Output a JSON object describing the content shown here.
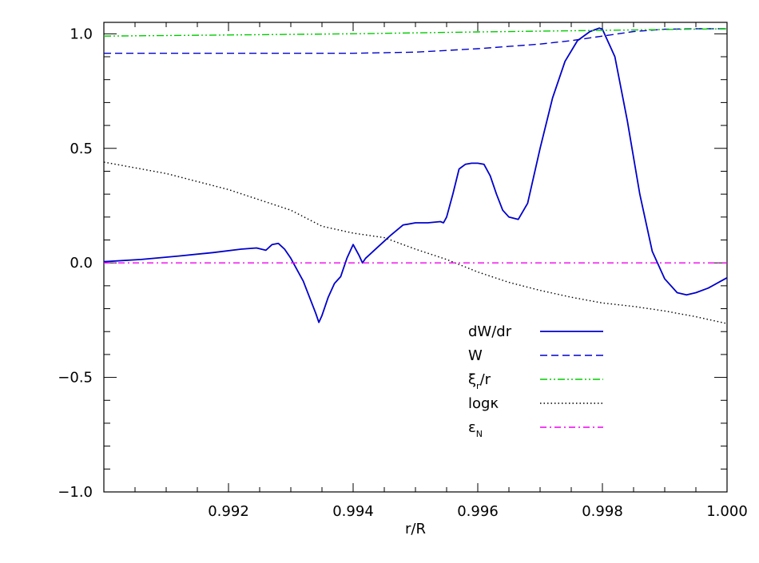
{
  "chart_data": {
    "type": "line",
    "title": "",
    "xlabel": "r/R",
    "ylabel": "",
    "xlim": [
      0.99,
      1.0
    ],
    "ylim": [
      -1.0,
      1.05
    ],
    "xticks": [
      0.992,
      0.994,
      0.996,
      0.998,
      1.0
    ],
    "xtick_labels": [
      "0.992",
      "0.994",
      "0.996",
      "0.998",
      "1.000"
    ],
    "yticks": [
      -1.0,
      -0.5,
      0.0,
      0.5,
      1.0
    ],
    "ytick_labels": [
      "−1.0",
      "−0.5",
      "0.0",
      "0.5",
      "1.0"
    ],
    "grid": false,
    "legend_position": "lower-right",
    "series": [
      {
        "name": "dW/dr",
        "color": "#0000cc",
        "style": "solid",
        "x": [
          0.99,
          0.9906,
          0.9912,
          0.99175,
          0.9922,
          0.99245,
          0.9926,
          0.9927,
          0.9928,
          0.9929,
          0.993,
          0.9931,
          0.9932,
          0.9933,
          0.9934,
          0.99345,
          0.9935,
          0.9936,
          0.9937,
          0.9938,
          0.9939,
          0.994,
          0.9941,
          0.99415,
          0.9942,
          0.9944,
          0.9946,
          0.9948,
          0.995,
          0.9952,
          0.9954,
          0.99545,
          0.9955,
          0.9956,
          0.9957,
          0.9958,
          0.9959,
          0.996,
          0.9961,
          0.9962,
          0.9963,
          0.9964,
          0.9965,
          0.99665,
          0.9968,
          0.997,
          0.9972,
          0.9974,
          0.9976,
          0.9978,
          0.99795,
          0.998,
          0.9982,
          0.9984,
          0.9986,
          0.9988,
          0.999,
          0.9992,
          0.99935,
          0.9995,
          0.9997,
          0.9999,
          1.0
        ],
        "y": [
          0.005,
          0.015,
          0.03,
          0.045,
          0.06,
          0.065,
          0.055,
          0.08,
          0.085,
          0.06,
          0.02,
          -0.03,
          -0.08,
          -0.15,
          -0.22,
          -0.26,
          -0.23,
          -0.15,
          -0.09,
          -0.06,
          0.02,
          0.08,
          0.03,
          0.0,
          0.02,
          0.07,
          0.12,
          0.165,
          0.175,
          0.175,
          0.18,
          0.175,
          0.2,
          0.3,
          0.41,
          0.43,
          0.435,
          0.435,
          0.43,
          0.38,
          0.3,
          0.23,
          0.2,
          0.19,
          0.26,
          0.5,
          0.72,
          0.88,
          0.97,
          1.01,
          1.025,
          1.02,
          0.9,
          0.62,
          0.3,
          0.05,
          -0.07,
          -0.13,
          -0.14,
          -0.13,
          -0.11,
          -0.08,
          -0.065
        ]
      },
      {
        "name": "W",
        "color": "#0000cc",
        "style": "dashed",
        "x": [
          0.99,
          0.992,
          0.994,
          0.995,
          0.996,
          0.9965,
          0.997,
          0.9975,
          0.998,
          0.9985,
          0.999,
          0.9995,
          1.0
        ],
        "y": [
          0.915,
          0.915,
          0.915,
          0.92,
          0.935,
          0.945,
          0.955,
          0.97,
          0.99,
          1.01,
          1.02,
          1.022,
          1.022
        ]
      },
      {
        "name": "ξ_r/r",
        "color": "#00cc00",
        "style": "dash-dot-dot",
        "x": [
          0.99,
          0.992,
          0.994,
          0.996,
          0.998,
          1.0
        ],
        "y": [
          0.99,
          0.995,
          1.0,
          1.008,
          1.015,
          1.022
        ]
      },
      {
        "name": "logκ",
        "color": "#000000",
        "style": "dotted",
        "x": [
          0.99,
          0.991,
          0.992,
          0.993,
          0.9935,
          0.994,
          0.9945,
          0.995,
          0.9955,
          0.996,
          0.9965,
          0.997,
          0.9975,
          0.998,
          0.9985,
          0.999,
          0.9995,
          1.0
        ],
        "y": [
          0.44,
          0.39,
          0.32,
          0.23,
          0.16,
          0.13,
          0.11,
          0.06,
          0.015,
          -0.04,
          -0.085,
          -0.12,
          -0.15,
          -0.175,
          -0.19,
          -0.21,
          -0.235,
          -0.265
        ]
      },
      {
        "name": "ε_N",
        "color": "#ee00ee",
        "style": "dash-dot",
        "x": [
          0.99,
          1.0
        ],
        "y": [
          0.0,
          0.0
        ]
      }
    ]
  },
  "legend": {
    "items": [
      {
        "label": "dW/dr",
        "sub": "",
        "color": "#0000cc",
        "style": "solid"
      },
      {
        "label": "W",
        "sub": "",
        "color": "#0000cc",
        "style": "dashed"
      },
      {
        "label": "ξ",
        "sub": "r",
        "suffix": "/r",
        "color": "#00cc00",
        "style": "dash-dot-dot"
      },
      {
        "label": "logκ",
        "sub": "",
        "color": "#000000",
        "style": "dotted"
      },
      {
        "label": "ε",
        "sub": "N",
        "color": "#ee00ee",
        "style": "dash-dot"
      }
    ]
  }
}
